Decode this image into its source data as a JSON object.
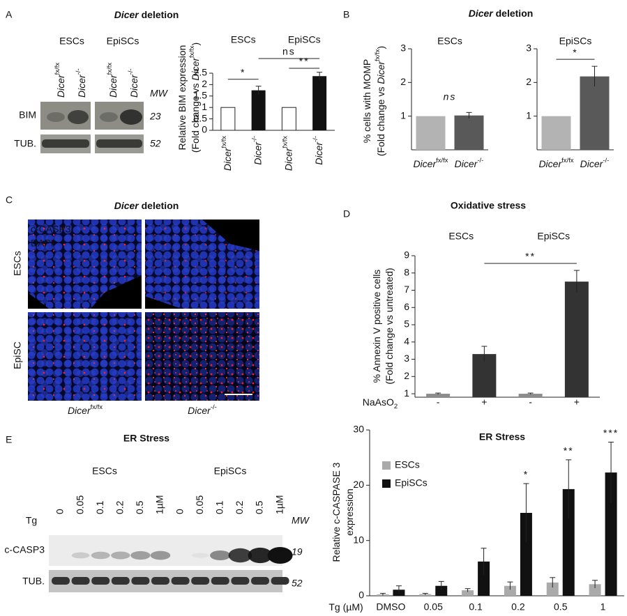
{
  "figure": {
    "panels": [
      "A",
      "B",
      "C",
      "D",
      "E"
    ],
    "blot_a": {
      "title": [
        {
          "t": "Dicer",
          "i": true
        },
        {
          "t": " deletion"
        }
      ],
      "groups": [
        "ESCs",
        "EpiSCs"
      ],
      "lanes": [
        [
          {
            "t": "Dicer",
            "i": true
          },
          {
            "t": "fx/fx",
            "sup": true
          }
        ],
        [
          {
            "t": "Dicer",
            "i": true
          },
          {
            "t": "-/-",
            "sup": true
          }
        ],
        [
          {
            "t": "Dicer",
            "i": true
          },
          {
            "t": "fx/fx",
            "sup": true
          }
        ],
        [
          {
            "t": "Dicer",
            "i": true
          },
          {
            "t": "-/-",
            "sup": true
          }
        ]
      ],
      "mw_header": "MW",
      "rows": [
        "BIM",
        "TUB."
      ],
      "mw": [
        "23",
        "52"
      ]
    },
    "b_title": [
      {
        "t": "Dicer",
        "i": true
      },
      {
        "t": " deletion"
      }
    ],
    "c_images": {
      "title": [
        {
          "t": "Dicer",
          "i": true
        },
        {
          "t": " deletion"
        }
      ],
      "stains": [
        "c-CASP3;",
        "DAPI"
      ],
      "rows": [
        "ESCs",
        "EpiSC"
      ],
      "columns": [
        [
          {
            "t": "Dicer",
            "i": true
          },
          {
            "t": "fx/fx",
            "sup": true
          }
        ],
        [
          {
            "t": "Dicer",
            "i": true
          },
          {
            "t": "-/-",
            "sup": true
          }
        ]
      ]
    },
    "blot_e": {
      "title": "ER Stress",
      "groups": [
        "ESCs",
        "EpiSCs"
      ],
      "treatment": "Tg",
      "lanes": [
        "0",
        "0.05",
        "0.1",
        "0.2",
        "0.5",
        "1µM",
        "0",
        "0.05",
        "0.1",
        "0.2",
        "0.5",
        "1µM"
      ],
      "mw_header": "MW",
      "rows": [
        "c-CASP3",
        "TUB."
      ],
      "mw": [
        "19",
        "52"
      ]
    }
  },
  "chart_data": [
    {
      "type": "bar",
      "groups": [
        "ESCs",
        "EpiSCs"
      ],
      "categories": [
        [
          {
            "t": "Dicer",
            "i": true
          },
          {
            "t": "fx/fx",
            "sup": true
          }
        ],
        [
          {
            "t": "Dicer",
            "i": true
          },
          {
            "t": "-/-",
            "sup": true
          }
        ],
        [
          {
            "t": "Dicer",
            "i": true
          },
          {
            "t": "fx/fx",
            "sup": true
          }
        ],
        [
          {
            "t": "Dicer",
            "i": true
          },
          {
            "t": "-/-",
            "sup": true
          }
        ]
      ],
      "values": [
        1,
        1.75,
        1,
        2.37
      ],
      "errors": [
        null,
        0.18,
        null,
        0.17
      ],
      "colors": [
        "#ffffff",
        "#111111",
        "#ffffff",
        "#111111"
      ],
      "ylim": [
        0,
        2.5
      ],
      "yticks": [
        0,
        0.5,
        1,
        1.5,
        2,
        2.5
      ],
      "ylabel": [
        [
          {
            "t": "Relative BIM expression"
          }
        ],
        [
          {
            "t": "(Fold change vs "
          },
          {
            "t": "Dicer",
            "i": true
          },
          {
            "t": "fx/fx",
            "sup": true
          },
          {
            "t": ")"
          }
        ]
      ],
      "annotations": [
        {
          "text": "*",
          "between": [
            0,
            1
          ]
        },
        {
          "text": "ns",
          "between": [
            1,
            3
          ]
        },
        {
          "text": "**",
          "between": [
            2,
            3
          ]
        }
      ]
    },
    {
      "type": "bar",
      "title": "ESCs",
      "categories": [
        [
          {
            "t": "Dicer",
            "i": true
          },
          {
            "t": "fx/fx",
            "sup": true
          }
        ],
        [
          {
            "t": "Dicer",
            "i": true
          },
          {
            "t": "-/-",
            "sup": true
          }
        ]
      ],
      "values": [
        1,
        1.02
      ],
      "errors": [
        null,
        0.09
      ],
      "colors": [
        "#b3b3b3",
        "#595959"
      ],
      "ylim": [
        0,
        3
      ],
      "yticks": [
        1,
        2,
        3
      ],
      "ylabel": [
        [
          {
            "t": "% cells with MOMP"
          }
        ],
        [
          {
            "t": "(Fold change vs "
          },
          {
            "t": "Dicer",
            "i": true
          },
          {
            "t": "fx/fx",
            "sup": true
          },
          {
            "t": ")"
          }
        ]
      ],
      "annotations": [
        {
          "text": "ns",
          "between": [
            0,
            1
          ],
          "bracket": false,
          "italic": true
        }
      ]
    },
    {
      "type": "bar",
      "title": "EpiSCs",
      "categories": [
        [
          {
            "t": "Dicer",
            "i": true
          },
          {
            "t": "fx/fx",
            "sup": true
          }
        ],
        [
          {
            "t": "Dicer",
            "i": true
          },
          {
            "t": "-/-",
            "sup": true
          }
        ]
      ],
      "values": [
        1,
        2.18
      ],
      "errors": [
        null,
        0.3
      ],
      "colors": [
        "#b3b3b3",
        "#595959"
      ],
      "ylim": [
        0,
        3
      ],
      "yticks": [
        1,
        2,
        3
      ],
      "annotations": [
        {
          "text": "*",
          "between": [
            0,
            1
          ]
        }
      ]
    },
    {
      "type": "bar",
      "title": "Oxidative stress",
      "groups": [
        "ESCs",
        "EpiSCs"
      ],
      "categories": [
        "-",
        "+",
        "-",
        "+"
      ],
      "xlabel": [
        {
          "t": "NaAsO"
        },
        {
          "t": "2",
          "sub": true
        }
      ],
      "values": [
        1,
        3.3,
        1,
        7.5
      ],
      "errors": [
        0.04,
        0.45,
        0.04,
        0.65
      ],
      "colors": [
        "#8c8c8c",
        "#333333",
        "#8c8c8c",
        "#333333"
      ],
      "ylim": [
        0.8,
        9
      ],
      "yticks": [
        1,
        2,
        3,
        4,
        5,
        6,
        7,
        8,
        9
      ],
      "ylabel": [
        [
          {
            "t": "% Annexin V positive cells"
          }
        ],
        [
          {
            "t": "(Fold change vs untreated)"
          }
        ]
      ],
      "annotations": [
        {
          "text": "**",
          "between": [
            1,
            3
          ]
        }
      ]
    },
    {
      "type": "grouped_bar",
      "title": "ER Stress",
      "categories": [
        "DMSO",
        "0.05",
        "0.1",
        "0.2",
        "0.5",
        "1"
      ],
      "xlabel": [
        {
          "t": "Tg (µM)"
        }
      ],
      "series": [
        {
          "name": "ESCs",
          "color": "#aaaaaa",
          "values": [
            0.25,
            0.3,
            1,
            1.8,
            2.4,
            2.1
          ],
          "errors": [
            0.2,
            0.15,
            0.3,
            0.7,
            0.9,
            0.7
          ]
        },
        {
          "name": "EpiSCs",
          "color": "#111111",
          "values": [
            1.1,
            1.8,
            6.2,
            15,
            19.3,
            22.3
          ],
          "errors": [
            0.7,
            0.8,
            2.4,
            5.3,
            5.3,
            5.5
          ]
        }
      ],
      "ylim": [
        0,
        30
      ],
      "yticks": [
        0,
        10,
        20,
        30
      ],
      "ylabel": [
        [
          {
            "t": "Relative c-CASPASE 3"
          }
        ],
        [
          {
            "t": "expression"
          }
        ]
      ],
      "legend": "upper left",
      "annotations": [
        {
          "text": "*",
          "category": 3
        },
        {
          "text": "**",
          "category": 4
        },
        {
          "text": "***",
          "category": 5
        }
      ]
    }
  ]
}
